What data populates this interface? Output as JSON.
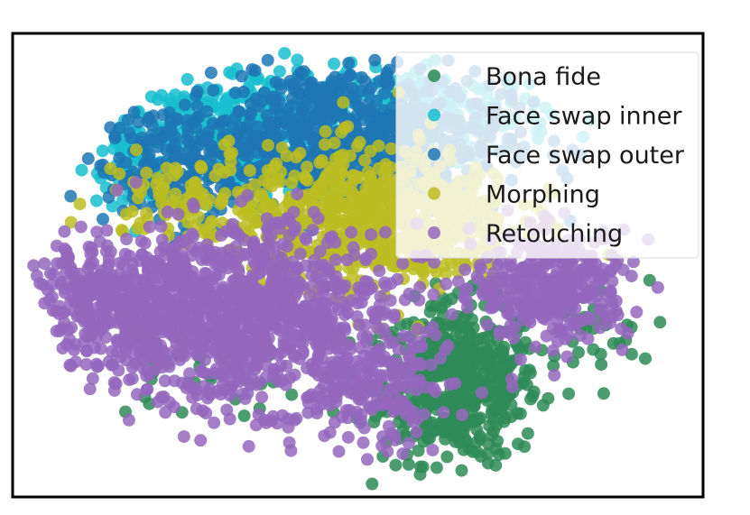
{
  "chart_data": {
    "type": "scatter",
    "title": "",
    "xlabel": "",
    "ylabel": "",
    "xlim": [
      -1.0,
      1.0
    ],
    "ylim": [
      -1.0,
      1.0
    ],
    "axes_visible": false,
    "grid": false,
    "legend_position": "top-right",
    "series": [
      {
        "name": "Bona fide",
        "color": "#2e8b57",
        "clusters": [
          {
            "center": [
              0.32,
              -0.52
            ],
            "spread": [
              0.12,
              0.18
            ],
            "count": 520
          },
          {
            "center": [
              -0.5,
              -0.45
            ],
            "spread": [
              0.18,
              0.12
            ],
            "count": 40
          },
          {
            "center": [
              0.7,
              -0.3
            ],
            "spread": [
              0.1,
              0.12
            ],
            "count": 40
          }
        ]
      },
      {
        "name": "Face swap inner",
        "color": "#17becf",
        "clusters": [
          {
            "center": [
              -0.35,
              0.62
            ],
            "spread": [
              0.2,
              0.15
            ],
            "count": 420
          },
          {
            "center": [
              0.28,
              0.7
            ],
            "spread": [
              0.16,
              0.1
            ],
            "count": 160
          },
          {
            "center": [
              -0.68,
              0.45
            ],
            "spread": [
              0.06,
              0.12
            ],
            "count": 60
          }
        ]
      },
      {
        "name": "Face swap outer",
        "color": "#1f77b4",
        "clusters": [
          {
            "center": [
              -0.05,
              0.58
            ],
            "spread": [
              0.25,
              0.17
            ],
            "count": 800
          },
          {
            "center": [
              -0.58,
              0.45
            ],
            "spread": [
              0.1,
              0.14
            ],
            "count": 140
          }
        ]
      },
      {
        "name": "Morphing",
        "color": "#bcbd22",
        "clusters": [
          {
            "center": [
              0.05,
              0.22
            ],
            "spread": [
              0.22,
              0.16
            ],
            "count": 750
          },
          {
            "center": [
              -0.55,
              0.32
            ],
            "spread": [
              0.12,
              0.1
            ],
            "count": 90
          }
        ]
      },
      {
        "name": "Retouching",
        "color": "#9467bd",
        "clusters": [
          {
            "center": [
              -0.38,
              -0.22
            ],
            "spread": [
              0.24,
              0.2
            ],
            "count": 1100
          },
          {
            "center": [
              -0.78,
              -0.15
            ],
            "spread": [
              0.12,
              0.12
            ],
            "count": 240
          },
          {
            "center": [
              0.6,
              -0.08
            ],
            "spread": [
              0.12,
              0.12
            ],
            "count": 360
          },
          {
            "center": [
              0.05,
              -0.55
            ],
            "spread": [
              0.12,
              0.14
            ],
            "count": 180
          }
        ]
      }
    ]
  }
}
